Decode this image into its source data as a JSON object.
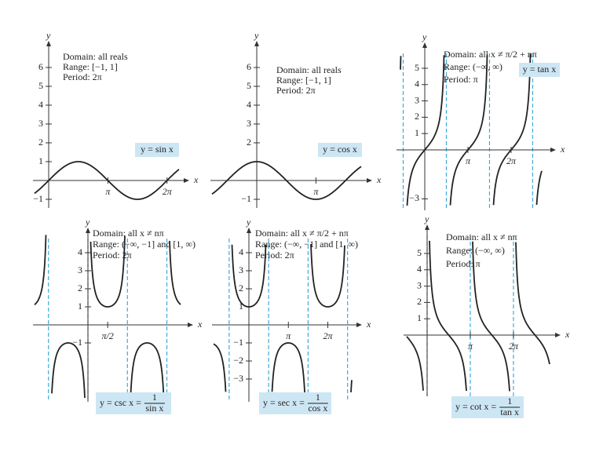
{
  "graphs": [
    {
      "axis_x": "x",
      "axis_y": "y",
      "info": [
        "Domain:  all reals",
        "Range:  [−1, 1]",
        "Period:  2π"
      ],
      "label": "y = sin x",
      "yticks": [
        {
          "value": -1,
          "label": "−1"
        },
        1,
        2,
        3,
        4,
        5,
        6
      ],
      "xticks": [
        {
          "value": 3.14159,
          "label": "π"
        },
        {
          "value": 6.28319,
          "label": "2π"
        }
      ]
    },
    {
      "axis_x": "x",
      "axis_y": "y",
      "info": [
        "Domain:  all reals",
        "Range:  [−1, 1]",
        "Period:  2π"
      ],
      "label": "y = cos x",
      "yticks": [
        {
          "value": -1,
          "label": "−1"
        },
        2,
        3,
        4,
        5,
        6
      ],
      "xticks": [
        {
          "value": 3.14159,
          "label": "π"
        }
      ]
    },
    {
      "axis_x": "x",
      "axis_y": "y",
      "info": [
        "Domain:  all x ≠ π/2 + nπ",
        "Range:  (−∞, ∞)",
        "Period:  π"
      ],
      "label": "y = tan x",
      "yticks": [
        {
          "value": -3,
          "label": "−3"
        },
        1,
        2,
        3,
        4,
        5
      ],
      "xticks": [
        {
          "value": 3.14159,
          "label": "π"
        },
        {
          "value": 6.28319,
          "label": "2π"
        }
      ]
    },
    {
      "axis_x": "x",
      "axis_y": "y",
      "info": [
        "Domain:  all x ≠ nπ",
        "Range:  (−∞, −1] and [1, ∞)",
        "Period:  2π"
      ],
      "label": "y = csc x =",
      "label_num": "1",
      "label_den": "sin x",
      "yticks": [
        {
          "value": -1,
          "label": "−1"
        },
        1,
        2,
        3,
        4
      ],
      "xticks": [
        {
          "value": 1.5708,
          "label": "π/2"
        }
      ]
    },
    {
      "axis_x": "x",
      "axis_y": "y",
      "info": [
        "Domain:  all x ≠ π/2 + nπ",
        "Range:  (−∞, −1] and [1, ∞)",
        "Period:  2π"
      ],
      "label": "y = sec x =",
      "label_num": "1",
      "label_den": "cos x",
      "yticks": [
        {
          "value": -3,
          "label": "−3"
        },
        {
          "value": -2,
          "label": "−2"
        },
        {
          "value": -1,
          "label": "−1"
        },
        1,
        2,
        3,
        4
      ],
      "xticks": [
        {
          "value": 3.14159,
          "label": "π"
        },
        {
          "value": 6.28319,
          "label": "2π"
        }
      ]
    },
    {
      "axis_x": "x",
      "axis_y": "y",
      "info": [
        "Domain:  all x ≠ nπ",
        "Range:  (−∞, ∞)",
        "Period:  π"
      ],
      "label": "y = cot x =",
      "label_num": "1",
      "label_den": "tan x",
      "yticks": [
        1,
        2,
        3,
        4,
        5
      ],
      "xticks": [
        {
          "value": 3.14159,
          "label": "π"
        },
        {
          "value": 6.28319,
          "label": "2π"
        }
      ]
    }
  ]
}
